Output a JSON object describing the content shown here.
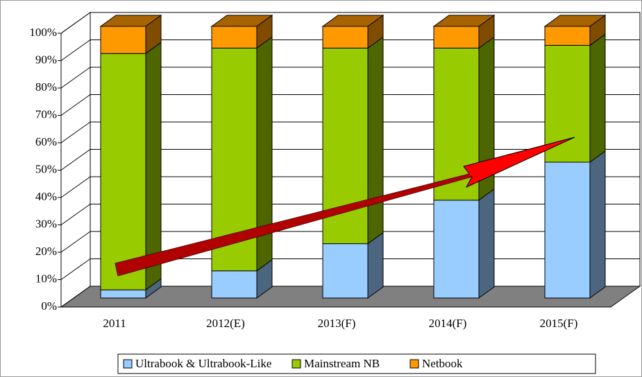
{
  "chart_data": {
    "type": "stacked_bar_3d",
    "categories": [
      "2011",
      "2012(E)",
      "2013(F)",
      "2014(F)",
      "2015(F)"
    ],
    "series": [
      {
        "name": "Ultrabook & Ultrabook-Like",
        "color": "#99ccff",
        "values": [
          3,
          10,
          20,
          36,
          50
        ]
      },
      {
        "name": "Mainstream NB",
        "color": "#99cc00",
        "values": [
          87,
          82,
          72,
          56,
          43
        ]
      },
      {
        "name": "Netbook",
        "color": "#ff9900",
        "values": [
          10,
          8,
          8,
          8,
          7
        ]
      }
    ],
    "ylim": [
      0,
      100
    ],
    "yticks": [
      {
        "value": 0,
        "label": "0%"
      },
      {
        "value": 10,
        "label": "10%"
      },
      {
        "value": 20,
        "label": "20%"
      },
      {
        "value": 30,
        "label": "30%"
      },
      {
        "value": 40,
        "label": "40%"
      },
      {
        "value": 50,
        "label": "50%"
      },
      {
        "value": 60,
        "label": "60%"
      },
      {
        "value": 70,
        "label": "70%"
      },
      {
        "value": 80,
        "label": "80%"
      },
      {
        "value": 90,
        "label": "90%"
      },
      {
        "value": 100,
        "label": "100%"
      }
    ],
    "grid": true,
    "legend": "bottom"
  }
}
